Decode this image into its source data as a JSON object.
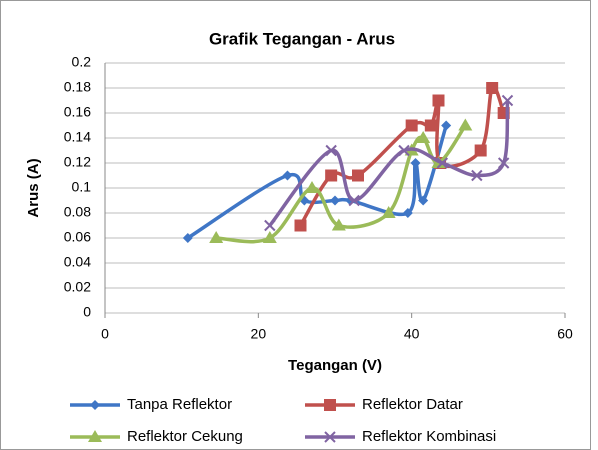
{
  "chart_data": {
    "type": "scatter-smooth",
    "title": "Grafik Tegangan - Arus",
    "x_label": "Tegangan (V)",
    "y_label": "Arus (A)",
    "xlim": [
      0,
      60
    ],
    "xticks": [
      0,
      20,
      40,
      60
    ],
    "ylim": [
      0,
      0.2
    ],
    "yticks": [
      0,
      0.02,
      0.04,
      0.06,
      0.08,
      0.1,
      0.12,
      0.14,
      0.16,
      0.18,
      0.2
    ],
    "grid": true,
    "legend": "bottom",
    "series": [
      {
        "name": "Tanpa Reflektor",
        "color": "#3f76c6",
        "marker": "diamond",
        "x": [
          10.8,
          23.8,
          26,
          30,
          32,
          39.5,
          40.5,
          41.5,
          44.5
        ],
        "values": [
          0.06,
          0.11,
          0.09,
          0.09,
          0.09,
          0.08,
          0.12,
          0.09,
          0.15
        ]
      },
      {
        "name": "Reflektor Datar",
        "color": "#c0504d",
        "marker": "square",
        "x": [
          25.5,
          29.5,
          33,
          40,
          42.5,
          43.5,
          43.7,
          49,
          50.5,
          52
        ],
        "values": [
          0.07,
          0.11,
          0.11,
          0.15,
          0.15,
          0.17,
          0.12,
          0.13,
          0.18,
          0.16
        ]
      },
      {
        "name": "Reflektor Cekung",
        "color": "#9bbb59",
        "marker": "triangle",
        "x": [
          14.5,
          21.5,
          27,
          30.5,
          37,
          40,
          41.5,
          43.5,
          47
        ],
        "values": [
          0.06,
          0.06,
          0.1,
          0.07,
          0.08,
          0.13,
          0.14,
          0.12,
          0.15
        ]
      },
      {
        "name": "Reflektor Kombinasi",
        "color": "#8064a2",
        "marker": "x",
        "x": [
          21.5,
          29.5,
          32.5,
          39,
          44,
          48.5,
          52,
          52.5
        ],
        "values": [
          0.07,
          0.13,
          0.09,
          0.13,
          0.12,
          0.11,
          0.12,
          0.17
        ]
      }
    ]
  }
}
